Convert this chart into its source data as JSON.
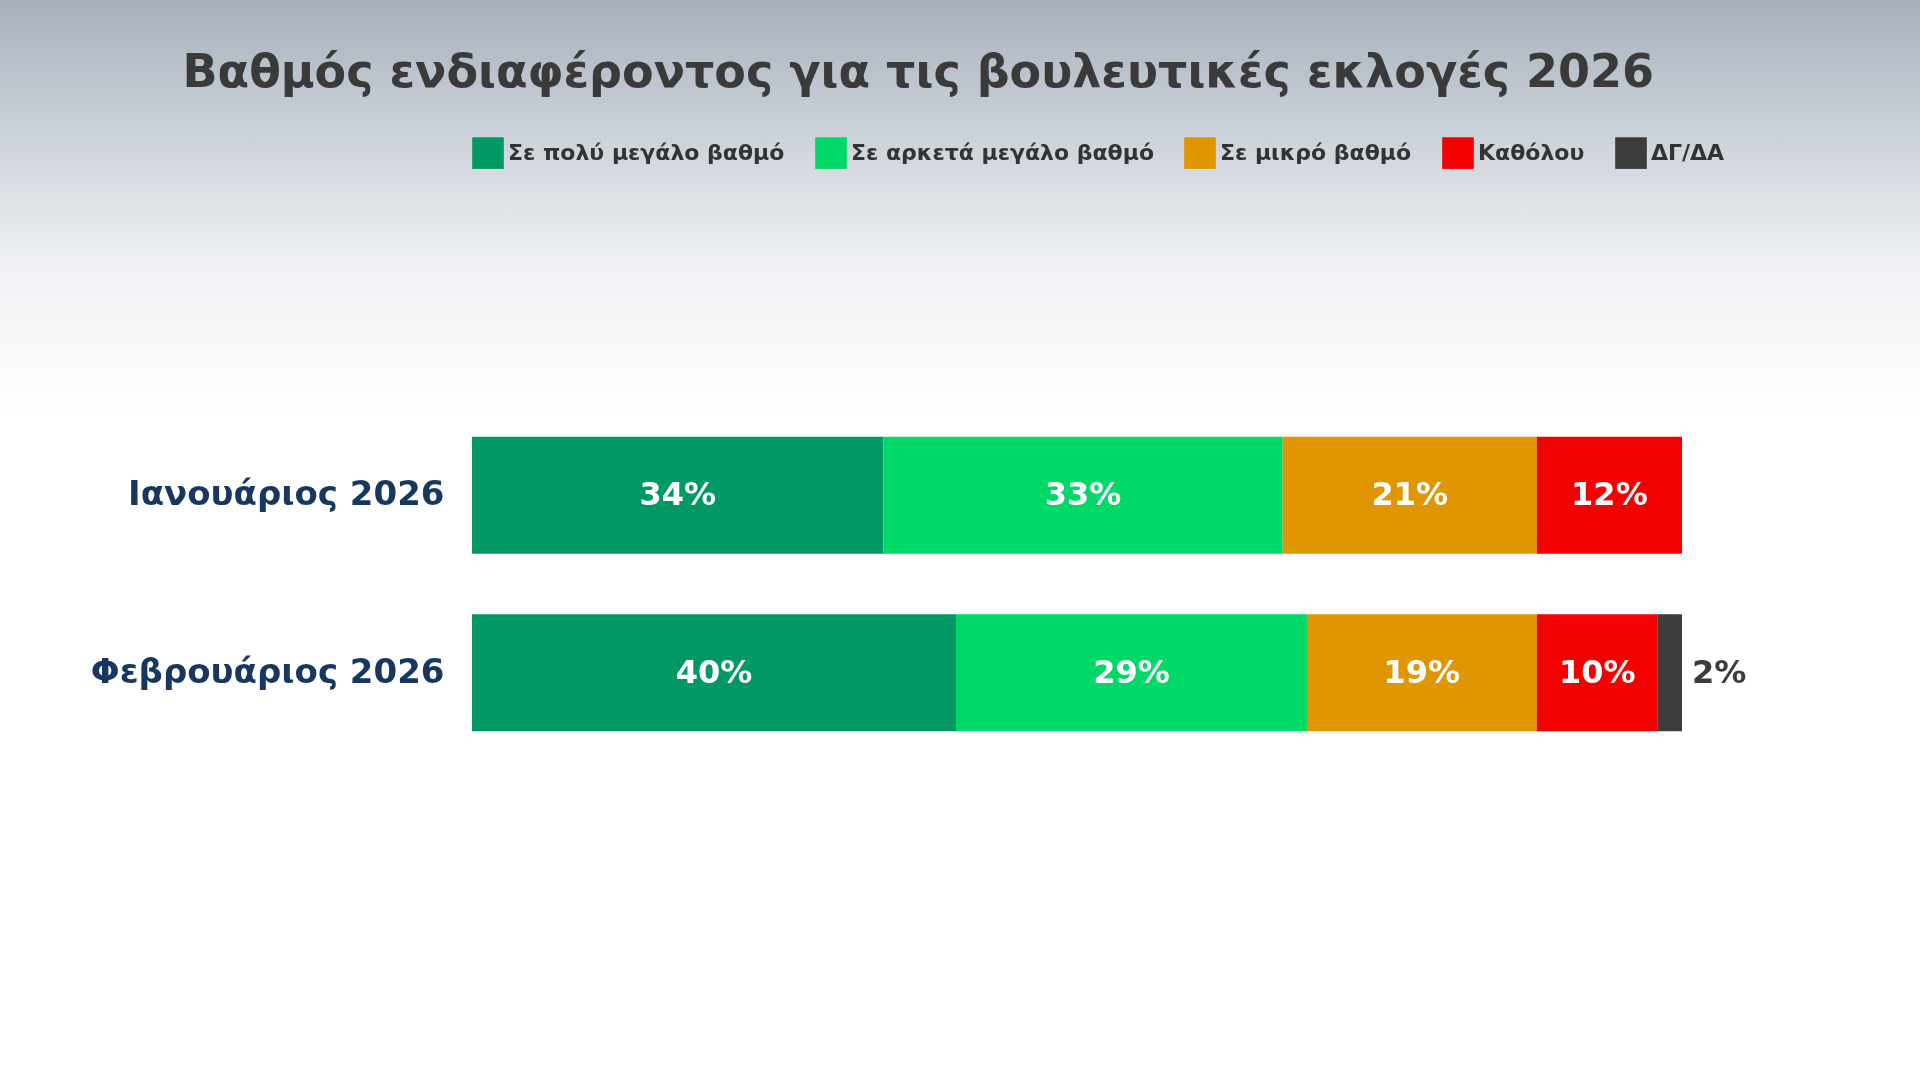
{
  "chart_data": {
    "type": "bar",
    "orientation": "horizontal",
    "stacked": true,
    "title": "Βαθμός ενδιαφέροντος για τις βουλευτικές εκλογές 2026",
    "categories": [
      "Ιανουάριος 2026",
      "Φεβρουάριος 2026"
    ],
    "series": [
      {
        "name": "Σε πολύ μεγάλο βαθμό",
        "color": "#009963",
        "values": [
          34,
          40
        ],
        "value_labels": [
          "34%",
          "40%"
        ]
      },
      {
        "name": "Σε αρκετά μεγάλο βαθμό",
        "color": "#00d967",
        "values": [
          33,
          29
        ],
        "value_labels": [
          "33%",
          "29%"
        ]
      },
      {
        "name": "Σε μικρό βαθμό",
        "color": "#e09600",
        "values": [
          21,
          19
        ],
        "value_labels": [
          "21%",
          "19%"
        ]
      },
      {
        "name": "Καθόλου",
        "color": "#f40000",
        "values": [
          12,
          10
        ],
        "value_labels": [
          "12%",
          "10%"
        ]
      },
      {
        "name": "ΔΓ/ΔΑ",
        "color": "#3c3c3c",
        "values": [
          null,
          2
        ],
        "value_labels": [
          null,
          "2%"
        ]
      }
    ],
    "xlim": [
      0,
      100
    ],
    "tick_labels": "y",
    "legend": "top"
  }
}
